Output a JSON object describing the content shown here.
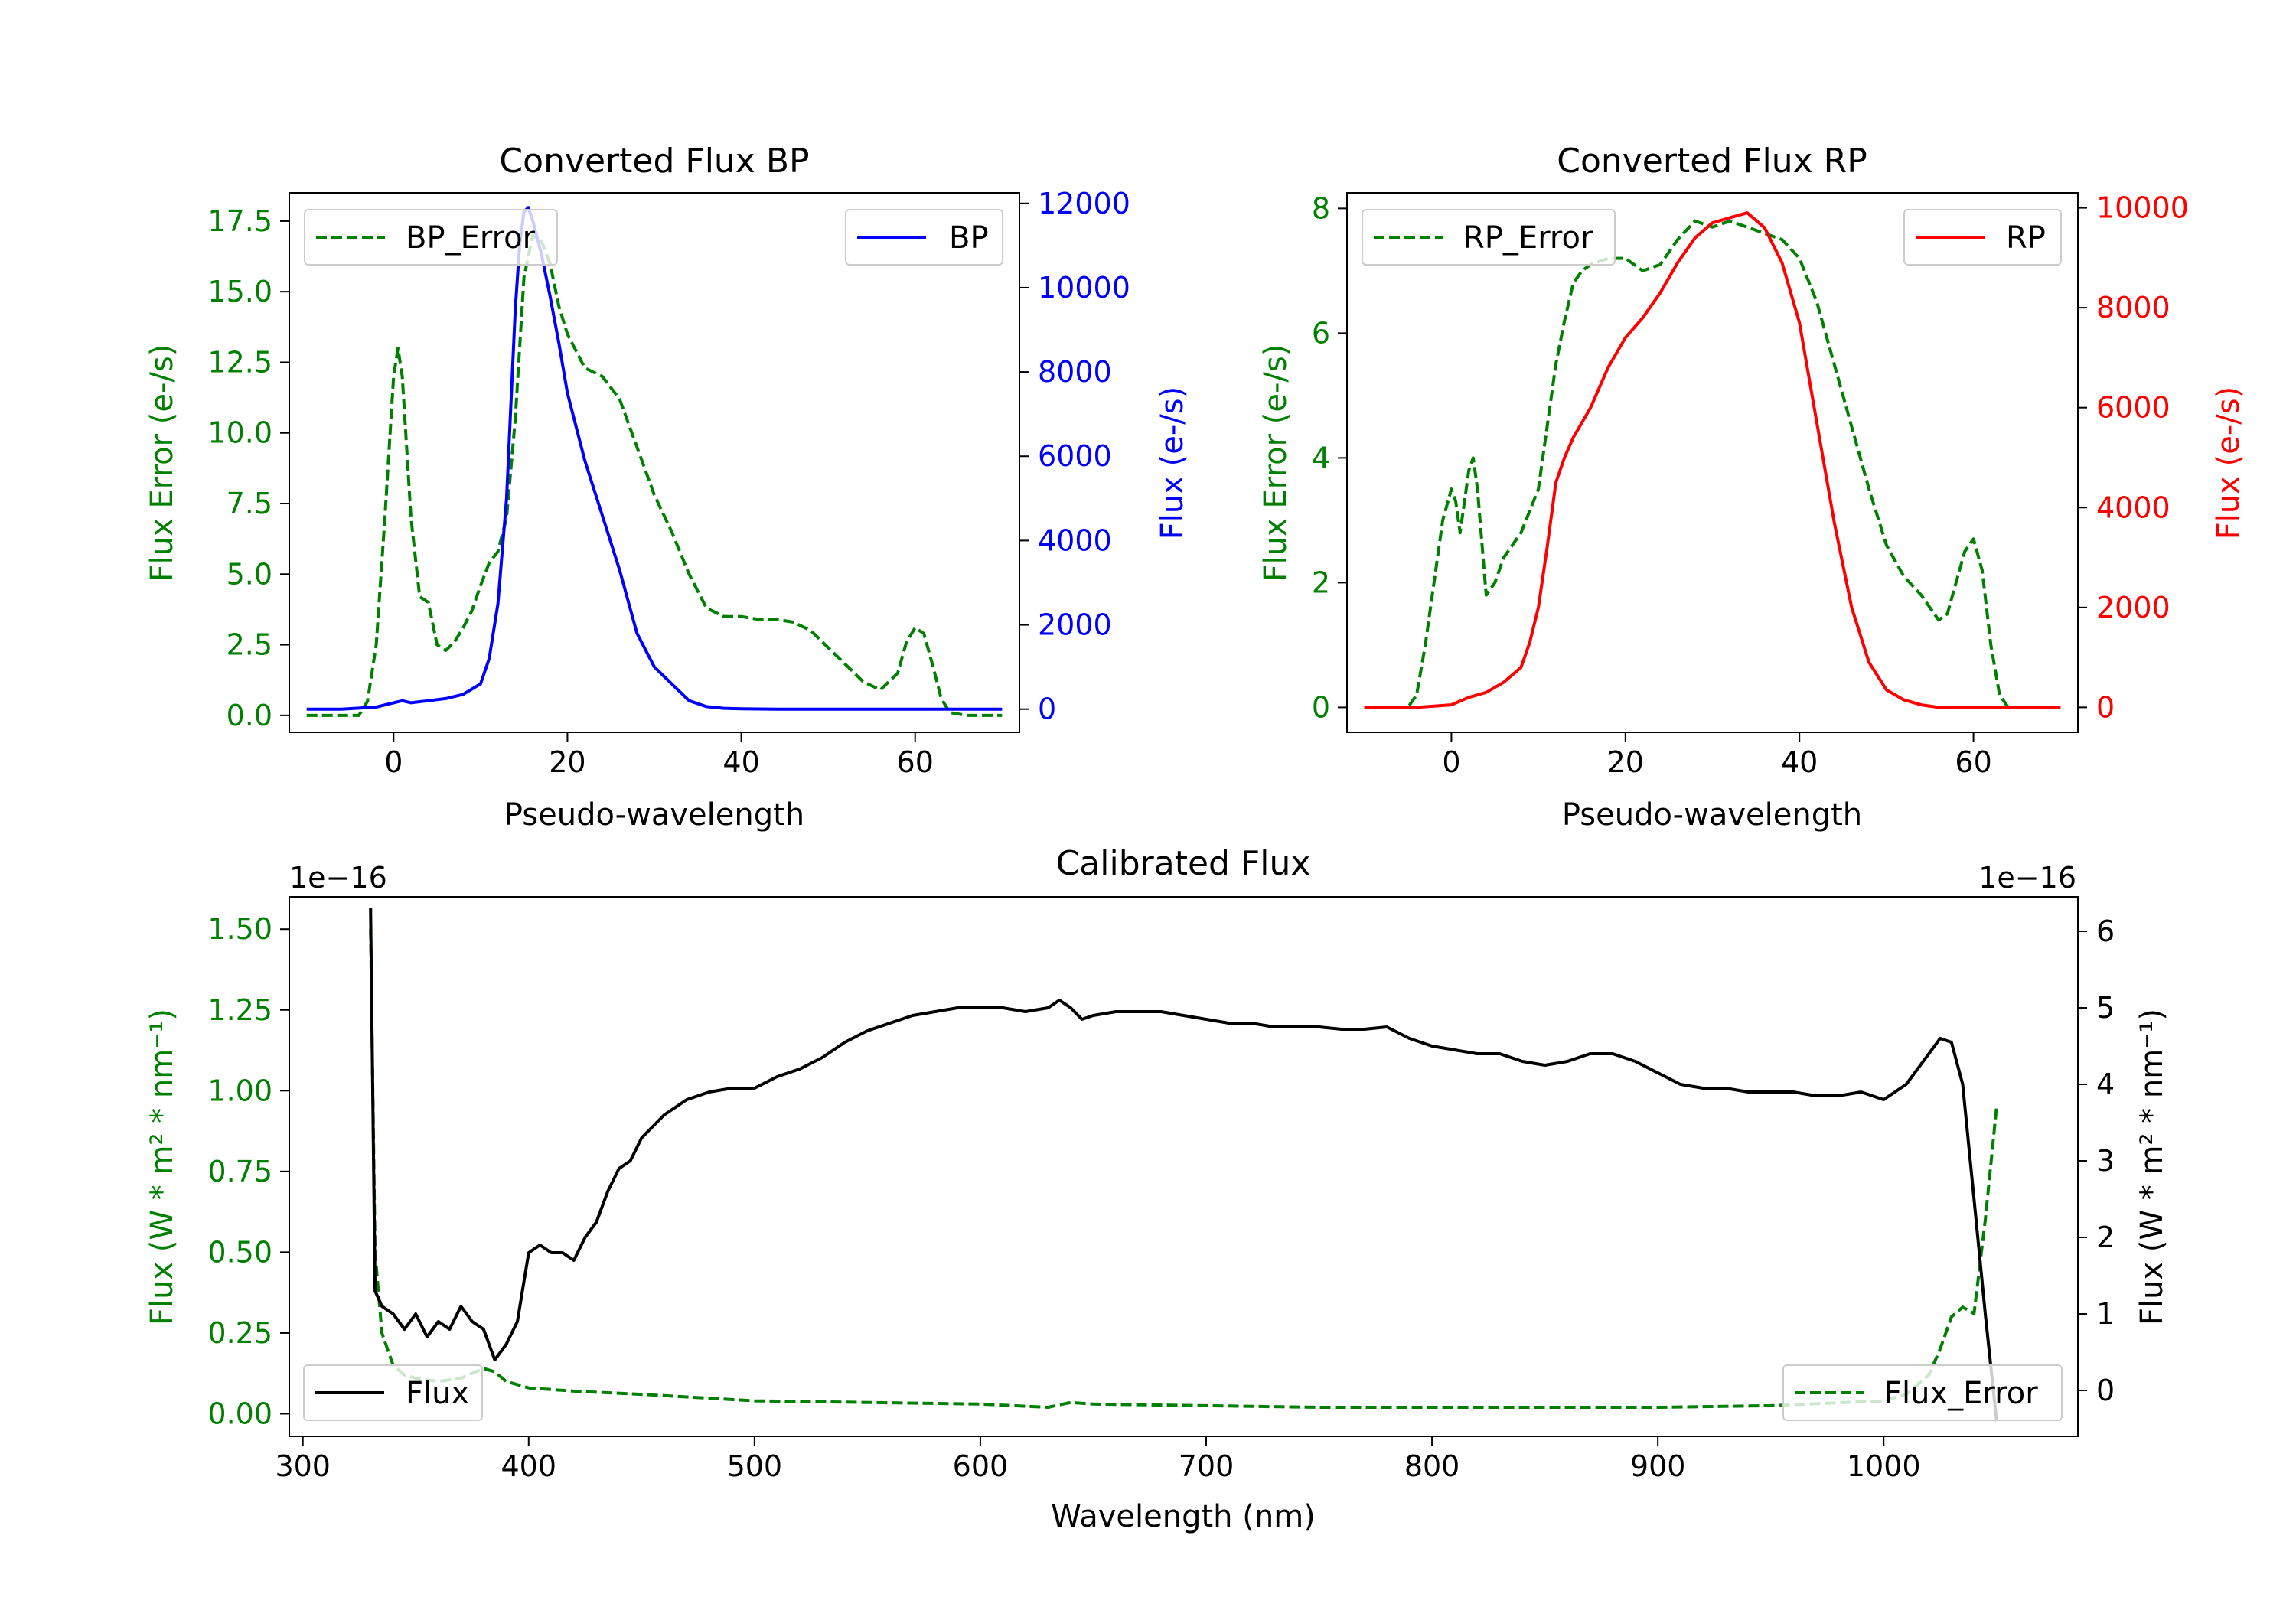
{
  "chart_data": [
    {
      "type": "line",
      "title": "Converted Flux BP",
      "xlabel": "Pseudo-wavelength",
      "ylabel_left": "Flux Error (e-/s)",
      "ylabel_right": "Flux (e-/s)",
      "xlim": [
        -12,
        72
      ],
      "ylim_left": [
        -0.6,
        18.5
      ],
      "ylim_right": [
        -550,
        12250
      ],
      "xticks": [
        "0",
        "20",
        "40",
        "60"
      ],
      "yticks_left": [
        "0.0",
        "2.5",
        "5.0",
        "7.5",
        "10.0",
        "12.5",
        "15.0",
        "17.5"
      ],
      "yticks_right": [
        "0",
        "2000",
        "4000",
        "6000",
        "8000",
        "10000",
        "12000"
      ],
      "colors": {
        "error": "#008000",
        "flux": "#0000ff"
      },
      "legend_left": "BP_Error",
      "legend_right": "BP",
      "series": [
        {
          "name": "BP_Error",
          "axis": "left",
          "style": "dashed",
          "x": [
            -10,
            -4,
            -3,
            -2,
            -1,
            0,
            0.5,
            1,
            2,
            3,
            4,
            5,
            6,
            7,
            8,
            9,
            10,
            11,
            12,
            13,
            14,
            15,
            16,
            17,
            18,
            19,
            20,
            22,
            24,
            26,
            28,
            30,
            32,
            34,
            36,
            38,
            40,
            42,
            44,
            46,
            48,
            50,
            52,
            54,
            56,
            58,
            59,
            60,
            61,
            62,
            63,
            64,
            66,
            70
          ],
          "y": [
            0,
            0,
            0.5,
            2.5,
            7.0,
            12.0,
            13.0,
            12.0,
            7.0,
            4.2,
            4.0,
            2.5,
            2.3,
            2.6,
            3.1,
            3.7,
            4.6,
            5.4,
            5.8,
            7.0,
            10.5,
            15.5,
            17.0,
            16.8,
            16.0,
            14.5,
            13.5,
            12.3,
            12.0,
            11.2,
            9.5,
            7.8,
            6.5,
            5.0,
            3.8,
            3.5,
            3.5,
            3.4,
            3.4,
            3.3,
            3.0,
            2.4,
            1.8,
            1.2,
            0.9,
            1.5,
            2.6,
            3.1,
            2.9,
            1.8,
            0.6,
            0.1,
            0,
            0
          ]
        },
        {
          "name": "BP",
          "axis": "right",
          "style": "solid",
          "x": [
            -10,
            -6,
            -2,
            0,
            1,
            2,
            4,
            6,
            8,
            10,
            11,
            12,
            13,
            14,
            14.5,
            15,
            15.5,
            16,
            17,
            18,
            19,
            20,
            22,
            24,
            26,
            28,
            30,
            32,
            34,
            36,
            38,
            40,
            44,
            50,
            56,
            60,
            64,
            70
          ],
          "y": [
            0,
            0,
            50,
            150,
            200,
            150,
            200,
            250,
            350,
            600,
            1200,
            2500,
            5000,
            9500,
            11000,
            11800,
            11900,
            11600,
            10800,
            9800,
            8700,
            7500,
            5900,
            4600,
            3300,
            1800,
            1000,
            600,
            200,
            60,
            20,
            10,
            0,
            0,
            0,
            0,
            0,
            0
          ]
        }
      ]
    },
    {
      "type": "line",
      "title": "Converted Flux RP",
      "xlabel": "Pseudo-wavelength",
      "ylabel_left": "Flux Error (e-/s)",
      "ylabel_right": "Flux (e-/s)",
      "xlim": [
        -12,
        72
      ],
      "ylim_left": [
        -0.4,
        8.25
      ],
      "ylim_right": [
        -500,
        10300
      ],
      "xticks": [
        "0",
        "20",
        "40",
        "60"
      ],
      "yticks_left": [
        "0",
        "2",
        "4",
        "6",
        "8"
      ],
      "yticks_right": [
        "0",
        "2000",
        "4000",
        "6000",
        "8000",
        "10000"
      ],
      "colors": {
        "error": "#008000",
        "flux": "#ff0000"
      },
      "legend_left": "RP_Error",
      "legend_right": "RP",
      "series": [
        {
          "name": "RP_Error",
          "axis": "left",
          "style": "dashed",
          "x": [
            -10,
            -5,
            -4,
            -3,
            -2,
            -1,
            0,
            0.5,
            1,
            2,
            2.5,
            3,
            4,
            5,
            6,
            8,
            10,
            11,
            12,
            13,
            14,
            15,
            16,
            18,
            20,
            22,
            24,
            26,
            28,
            30,
            32,
            34,
            36,
            38,
            40,
            42,
            44,
            46,
            48,
            50,
            52,
            54,
            55,
            56,
            57,
            58,
            59,
            60,
            61,
            62,
            63,
            64,
            66,
            70
          ],
          "y": [
            0,
            0,
            0.2,
            1.0,
            2.0,
            3.0,
            3.5,
            3.3,
            2.8,
            3.8,
            4.0,
            3.5,
            1.8,
            2.0,
            2.4,
            2.8,
            3.5,
            4.5,
            5.5,
            6.2,
            6.8,
            7.0,
            7.1,
            7.2,
            7.2,
            7.0,
            7.1,
            7.5,
            7.8,
            7.7,
            7.8,
            7.7,
            7.6,
            7.5,
            7.2,
            6.5,
            5.5,
            4.5,
            3.5,
            2.6,
            2.1,
            1.8,
            1.6,
            1.4,
            1.5,
            2.0,
            2.5,
            2.7,
            2.2,
            1.0,
            0.2,
            0,
            0,
            0
          ]
        },
        {
          "name": "RP",
          "axis": "right",
          "style": "solid",
          "x": [
            -10,
            -4,
            0,
            2,
            4,
            6,
            8,
            9,
            10,
            11,
            12,
            13,
            14,
            16,
            18,
            20,
            22,
            24,
            26,
            28,
            30,
            32,
            34,
            36,
            38,
            40,
            42,
            44,
            46,
            48,
            50,
            52,
            54,
            56,
            58,
            60,
            62,
            64,
            70
          ],
          "y": [
            0,
            0,
            50,
            200,
            300,
            500,
            800,
            1300,
            2000,
            3200,
            4500,
            5000,
            5400,
            6000,
            6800,
            7400,
            7800,
            8300,
            8900,
            9400,
            9700,
            9800,
            9900,
            9600,
            8900,
            7700,
            5700,
            3700,
            2000,
            900,
            350,
            150,
            50,
            0,
            0,
            0,
            0,
            0,
            0
          ]
        }
      ]
    },
    {
      "type": "line",
      "title": "Calibrated Flux",
      "xlabel": "Wavelength (nm)",
      "ylabel_left": "Flux (W * m² * nm⁻¹)",
      "ylabel_right": "Flux (W * m² * nm⁻¹)",
      "offset_left": "1e−16",
      "offset_right": "1e−16",
      "xlim": [
        294,
        1086
      ],
      "ylim_left": [
        -0.07,
        1.6
      ],
      "ylim_right": [
        -0.6,
        6.45
      ],
      "xticks": [
        "300",
        "400",
        "500",
        "600",
        "700",
        "800",
        "900",
        "1000"
      ],
      "yticks_left": [
        "0.00",
        "0.25",
        "0.50",
        "0.75",
        "1.00",
        "1.25",
        "1.50"
      ],
      "yticks_right": [
        "0",
        "1",
        "2",
        "3",
        "4",
        "5",
        "6"
      ],
      "colors": {
        "error": "#008000",
        "flux": "#000000"
      },
      "legend_left": "Flux",
      "legend_right": "Flux_Error",
      "series": [
        {
          "name": "Flux_Error",
          "axis": "left",
          "style": "dashed",
          "x": [
            330,
            332,
            335,
            340,
            345,
            350,
            360,
            370,
            380,
            385,
            390,
            400,
            420,
            450,
            500,
            550,
            600,
            630,
            640,
            650,
            700,
            750,
            800,
            850,
            900,
            950,
            1000,
            1010,
            1020,
            1025,
            1030,
            1035,
            1040,
            1045,
            1050
          ],
          "y": [
            1.5,
            0.5,
            0.25,
            0.15,
            0.12,
            0.11,
            0.1,
            0.11,
            0.14,
            0.13,
            0.1,
            0.08,
            0.07,
            0.06,
            0.04,
            0.035,
            0.03,
            0.02,
            0.035,
            0.03,
            0.025,
            0.02,
            0.02,
            0.02,
            0.02,
            0.025,
            0.04,
            0.06,
            0.12,
            0.2,
            0.3,
            0.33,
            0.31,
            0.6,
            0.95
          ]
        },
        {
          "name": "Flux",
          "axis": "right",
          "style": "solid",
          "x": [
            330,
            332,
            335,
            340,
            345,
            350,
            355,
            360,
            365,
            370,
            375,
            380,
            385,
            390,
            395,
            400,
            405,
            410,
            415,
            420,
            425,
            430,
            435,
            440,
            445,
            450,
            460,
            470,
            480,
            490,
            500,
            510,
            520,
            530,
            540,
            550,
            560,
            570,
            580,
            590,
            600,
            610,
            620,
            630,
            635,
            640,
            645,
            650,
            660,
            670,
            680,
            690,
            700,
            710,
            720,
            730,
            740,
            750,
            760,
            770,
            780,
            790,
            800,
            810,
            820,
            830,
            840,
            850,
            860,
            870,
            880,
            890,
            900,
            910,
            920,
            930,
            940,
            950,
            960,
            970,
            980,
            990,
            1000,
            1010,
            1020,
            1025,
            1030,
            1035,
            1040,
            1045,
            1050
          ],
          "y": [
            6.3,
            1.3,
            1.1,
            1.0,
            0.8,
            1.0,
            0.7,
            0.9,
            0.8,
            1.1,
            0.9,
            0.8,
            0.4,
            0.6,
            0.9,
            1.8,
            1.9,
            1.8,
            1.8,
            1.7,
            2.0,
            2.2,
            2.6,
            2.9,
            3.0,
            3.3,
            3.6,
            3.8,
            3.9,
            3.95,
            3.95,
            4.1,
            4.2,
            4.35,
            4.55,
            4.7,
            4.8,
            4.9,
            4.95,
            5.0,
            5.0,
            5.0,
            4.95,
            5.0,
            5.1,
            5.0,
            4.85,
            4.9,
            4.95,
            4.95,
            4.95,
            4.9,
            4.85,
            4.8,
            4.8,
            4.75,
            4.75,
            4.75,
            4.72,
            4.72,
            4.75,
            4.6,
            4.5,
            4.45,
            4.4,
            4.4,
            4.3,
            4.25,
            4.3,
            4.4,
            4.4,
            4.3,
            4.15,
            4.0,
            3.95,
            3.95,
            3.9,
            3.9,
            3.9,
            3.85,
            3.85,
            3.9,
            3.8,
            4.0,
            4.4,
            4.6,
            4.55,
            4.0,
            2.5,
            1.0,
            -0.4
          ]
        }
      ]
    }
  ]
}
